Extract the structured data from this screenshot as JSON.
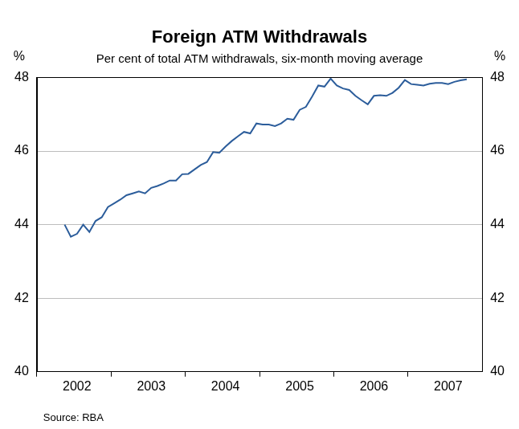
{
  "chart_data": {
    "type": "line",
    "title": "Foreign ATM Withdrawals",
    "subtitle": "Per cent of total ATM withdrawals, six-month moving average",
    "ylabel": "%",
    "y2label": "%",
    "source": "Source: RBA",
    "categories": [
      null,
      null,
      null,
      null,
      null,
      null,
      "2002",
      null,
      null,
      null,
      null,
      null,
      null,
      null,
      null,
      null,
      null,
      null,
      "2003",
      null,
      null,
      null,
      null,
      null,
      null,
      null,
      null,
      null,
      null,
      null,
      "2004",
      null,
      null,
      null,
      null,
      null,
      null,
      null,
      null,
      null,
      null,
      null,
      "2005",
      null,
      null,
      null,
      null,
      null,
      null,
      null,
      null,
      null,
      null,
      null,
      "2006",
      null,
      null,
      null,
      null,
      null,
      null,
      null,
      null,
      null,
      null,
      null,
      "2007",
      null,
      null,
      null,
      null,
      null
    ],
    "values": [
      null,
      null,
      null,
      null,
      44.0,
      43.67,
      43.75,
      44.0,
      43.8,
      44.1,
      44.2,
      44.48,
      44.58,
      44.68,
      44.8,
      44.85,
      44.9,
      44.85,
      45.0,
      45.05,
      45.12,
      45.2,
      45.2,
      45.37,
      45.38,
      45.5,
      45.62,
      45.7,
      45.97,
      45.95,
      46.12,
      46.27,
      46.4,
      46.52,
      46.48,
      46.75,
      46.72,
      46.72,
      46.68,
      46.75,
      46.88,
      46.85,
      47.12,
      47.2,
      47.48,
      47.78,
      47.75,
      47.97,
      47.78,
      47.7,
      47.66,
      47.5,
      47.38,
      47.27,
      47.5,
      47.52,
      47.5,
      47.58,
      47.72,
      47.93,
      47.82,
      47.8,
      47.78,
      47.83,
      47.85,
      47.85,
      47.82,
      47.88,
      47.92,
      47.95,
      null,
      null
    ],
    "color": "#2c5d9b",
    "ylim": [
      40,
      48
    ],
    "yticks": [
      40,
      42,
      44,
      46,
      48
    ],
    "y2lim": [
      40,
      48
    ],
    "y2ticks": [
      40,
      42,
      44,
      46,
      48
    ],
    "grid": true
  }
}
